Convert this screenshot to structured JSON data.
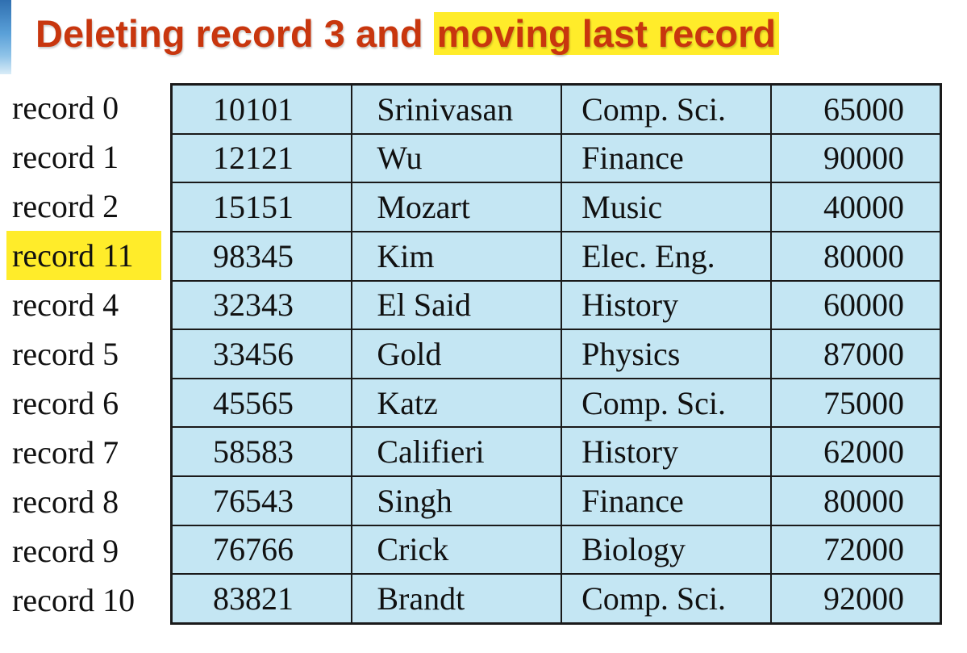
{
  "title": {
    "prefix": "Deleting record 3 and ",
    "highlighted": "moving last record"
  },
  "colors": {
    "title": "#c8360e",
    "highlight": "#ffec2a",
    "table_fill": "#c4e6f3"
  },
  "records": [
    {
      "label": "record 0",
      "id": "10101",
      "name": "Srinivasan",
      "dept": "Comp. Sci.",
      "salary": "65000",
      "highlighted": false
    },
    {
      "label": "record 1",
      "id": "12121",
      "name": "Wu",
      "dept": "Finance",
      "salary": "90000",
      "highlighted": false
    },
    {
      "label": "record 2",
      "id": "15151",
      "name": "Mozart",
      "dept": "Music",
      "salary": "40000",
      "highlighted": false
    },
    {
      "label": "record 11",
      "id": "98345",
      "name": "Kim",
      "dept": "Elec. Eng.",
      "salary": "80000",
      "highlighted": true
    },
    {
      "label": "record 4",
      "id": "32343",
      "name": "El Said",
      "dept": "History",
      "salary": "60000",
      "highlighted": false
    },
    {
      "label": "record 5",
      "id": "33456",
      "name": "Gold",
      "dept": "Physics",
      "salary": "87000",
      "highlighted": false
    },
    {
      "label": "record 6",
      "id": "45565",
      "name": "Katz",
      "dept": "Comp. Sci.",
      "salary": "75000",
      "highlighted": false
    },
    {
      "label": "record 7",
      "id": "58583",
      "name": "Califieri",
      "dept": "History",
      "salary": "62000",
      "highlighted": false
    },
    {
      "label": "record 8",
      "id": "76543",
      "name": "Singh",
      "dept": "Finance",
      "salary": "80000",
      "highlighted": false
    },
    {
      "label": "record 9",
      "id": "76766",
      "name": "Crick",
      "dept": "Biology",
      "salary": "72000",
      "highlighted": false
    },
    {
      "label": "record 10",
      "id": "83821",
      "name": "Brandt",
      "dept": "Comp. Sci.",
      "salary": "92000",
      "highlighted": false
    }
  ]
}
